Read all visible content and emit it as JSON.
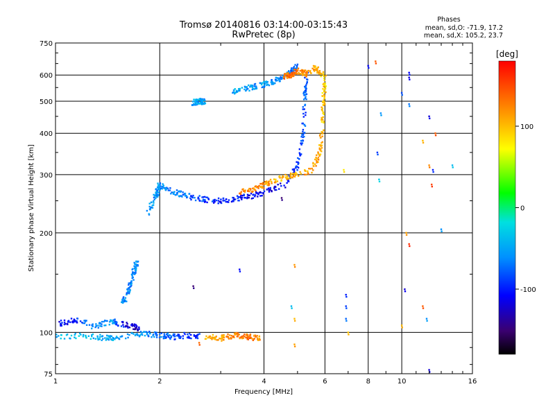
{
  "chart_data": {
    "type": "scatter",
    "title": "Tromsø 20140816 03:14:00-03:15:43",
    "subtitle": "RwPretec (8p)",
    "info_title": "Phases",
    "info_line1": "mean, sd,O: -71.9, 17.2",
    "info_line2": "mean, sd,X: 105.2, 23.7",
    "xlabel": "Frequency [MHz]",
    "ylabel": "Stationary phase Virtual Height [km]",
    "x_scale": "log",
    "y_scale": "log",
    "xlim": [
      1,
      16
    ],
    "ylim": [
      75,
      750
    ],
    "x_ticks": [
      {
        "value": 1,
        "label": "1"
      },
      {
        "value": 2,
        "label": "2"
      },
      {
        "value": 4,
        "label": "4"
      },
      {
        "value": 6,
        "label": "6"
      },
      {
        "value": 8,
        "label": "8"
      },
      {
        "value": 10,
        "label": "10"
      },
      {
        "value": 16,
        "label": "16"
      }
    ],
    "y_ticks": [
      {
        "value": 75,
        "label": "75"
      },
      {
        "value": 100,
        "label": "100"
      },
      {
        "value": 200,
        "label": "200"
      },
      {
        "value": 300,
        "label": "300"
      },
      {
        "value": 400,
        "label": "400"
      },
      {
        "value": 500,
        "label": "500"
      },
      {
        "value": 600,
        "label": "600"
      },
      {
        "value": 750,
        "label": "750"
      }
    ],
    "grid": true,
    "colorbar": {
      "label": "[deg]",
      "range": [
        -180,
        180
      ],
      "ticks": [
        {
          "value": 100,
          "label": "100"
        },
        {
          "value": 0,
          "label": "0"
        },
        {
          "value": -100,
          "label": "-100"
        }
      ]
    },
    "traces": [
      {
        "f": [
          1.0,
          1.2,
          1.4,
          1.6,
          1.8,
          2.0,
          2.2,
          2.4,
          2.6
        ],
        "h": [
          97,
          98,
          96,
          97,
          99,
          98,
          97,
          98,
          97
        ],
        "phase": [
          -40,
          -35,
          -45,
          -50,
          -60,
          -70,
          -80,
          -90,
          -100
        ]
      },
      {
        "f": [
          1.02,
          1.15,
          1.3,
          1.45,
          1.6,
          1.75
        ],
        "h": [
          106,
          109,
          104,
          108,
          105,
          103
        ],
        "phase": [
          -110,
          -95,
          -60,
          -50,
          -120,
          -130
        ]
      },
      {
        "f": [
          1.55,
          1.62,
          1.68,
          1.72
        ],
        "h": [
          120,
          132,
          150,
          165
        ],
        "phase": [
          -60,
          -65,
          -55,
          -60
        ]
      },
      {
        "f": [
          2.7,
          3.0,
          3.3,
          3.6,
          3.9
        ],
        "h": [
          97,
          96,
          98,
          97,
          96
        ],
        "phase": [
          100,
          110,
          125,
          130,
          120
        ]
      },
      {
        "f": [
          1.85,
          1.95,
          2.0,
          2.1,
          2.3,
          2.5,
          2.7,
          3.0,
          3.4,
          3.8,
          4.2,
          4.6,
          5.0,
          5.2,
          5.25,
          5.3
        ],
        "h": [
          230,
          260,
          280,
          270,
          262,
          255,
          252,
          250,
          255,
          260,
          270,
          280,
          320,
          400,
          500,
          620
        ],
        "phase": [
          -55,
          -58,
          -60,
          -65,
          -70,
          -80,
          -90,
          -100,
          -105,
          -110,
          -115,
          -110,
          -95,
          -85,
          -80,
          -75
        ]
      },
      {
        "f": [
          3.4,
          3.8,
          4.2,
          4.6,
          5.0,
          5.5,
          5.8,
          5.9,
          5.95,
          6.0
        ],
        "h": [
          265,
          272,
          285,
          295,
          300,
          310,
          350,
          420,
          500,
          590
        ],
        "phase": [
          130,
          125,
          110,
          105,
          110,
          115,
          110,
          100,
          95,
          90
        ]
      },
      {
        "f": [
          3.2,
          3.5,
          3.8,
          4.2,
          4.5,
          4.8,
          5.0
        ],
        "h": [
          530,
          545,
          555,
          570,
          590,
          610,
          640
        ],
        "phase": [
          -45,
          -50,
          -55,
          -60,
          -65,
          -70,
          -75
        ]
      },
      {
        "f": [
          2.5,
          2.6,
          2.7
        ],
        "h": [
          495,
          500,
          498
        ],
        "phase": [
          -50,
          -48,
          -52
        ]
      },
      {
        "f": [
          4.6,
          4.8,
          5.0,
          5.3,
          5.6,
          5.9
        ],
        "h": [
          595,
          600,
          620,
          605,
          630,
          600
        ],
        "phase": [
          135,
          130,
          125,
          120,
          110,
          105
        ]
      }
    ],
    "scatter_points": [
      {
        "f": 8.0,
        "h": 640,
        "phase": -110
      },
      {
        "f": 8.4,
        "h": 660,
        "phase": 140
      },
      {
        "f": 10.5,
        "h": 610,
        "phase": -110
      },
      {
        "f": 10.5,
        "h": 590,
        "phase": -120
      },
      {
        "f": 10.0,
        "h": 530,
        "phase": -85
      },
      {
        "f": 12.0,
        "h": 450,
        "phase": -120
      },
      {
        "f": 8.7,
        "h": 460,
        "phase": -60
      },
      {
        "f": 10.5,
        "h": 490,
        "phase": -70
      },
      {
        "f": 11.5,
        "h": 380,
        "phase": 100
      },
      {
        "f": 12.5,
        "h": 400,
        "phase": 140
      },
      {
        "f": 8.5,
        "h": 350,
        "phase": -90
      },
      {
        "f": 12.0,
        "h": 320,
        "phase": 120
      },
      {
        "f": 12.3,
        "h": 310,
        "phase": -100
      },
      {
        "f": 14.0,
        "h": 320,
        "phase": -40
      },
      {
        "f": 8.6,
        "h": 290,
        "phase": -30
      },
      {
        "f": 12.2,
        "h": 280,
        "phase": 150
      },
      {
        "f": 10.3,
        "h": 200,
        "phase": 110
      },
      {
        "f": 10.5,
        "h": 185,
        "phase": 160
      },
      {
        "f": 13.0,
        "h": 205,
        "phase": -60
      },
      {
        "f": 6.8,
        "h": 310,
        "phase": 80
      },
      {
        "f": 4.5,
        "h": 255,
        "phase": -150
      },
      {
        "f": 3.4,
        "h": 155,
        "phase": -110
      },
      {
        "f": 2.5,
        "h": 138,
        "phase": -150
      },
      {
        "f": 4.9,
        "h": 160,
        "phase": 115
      },
      {
        "f": 4.8,
        "h": 120,
        "phase": -40
      },
      {
        "f": 4.9,
        "h": 110,
        "phase": 100
      },
      {
        "f": 6.9,
        "h": 130,
        "phase": -100
      },
      {
        "f": 6.9,
        "h": 120,
        "phase": -90
      },
      {
        "f": 6.9,
        "h": 110,
        "phase": -75
      },
      {
        "f": 7.0,
        "h": 100,
        "phase": 95
      },
      {
        "f": 10.0,
        "h": 105,
        "phase": 100
      },
      {
        "f": 11.5,
        "h": 120,
        "phase": 140
      },
      {
        "f": 11.8,
        "h": 110,
        "phase": -60
      },
      {
        "f": 10.2,
        "h": 135,
        "phase": -120
      },
      {
        "f": 12.0,
        "h": 77,
        "phase": -120
      },
      {
        "f": 4.9,
        "h": 92,
        "phase": 110
      },
      {
        "f": 2.6,
        "h": 93,
        "phase": 135
      }
    ]
  }
}
